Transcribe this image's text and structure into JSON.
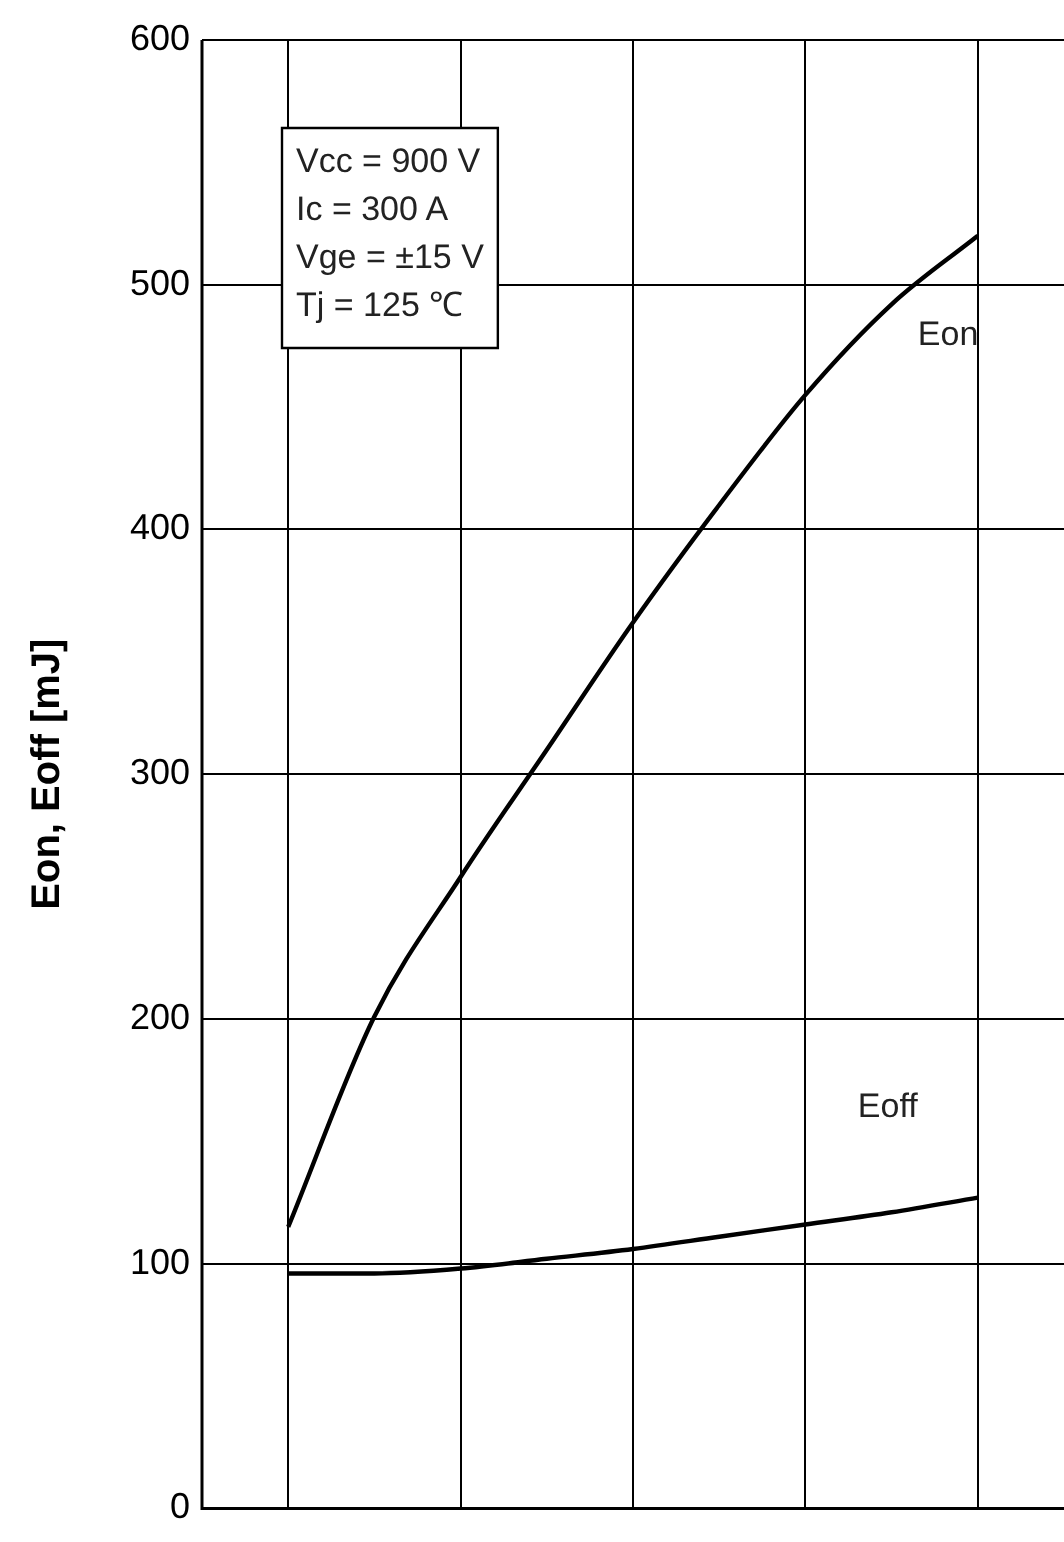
{
  "chart_data": {
    "type": "line",
    "ylabel": "Eon, Eoff [mJ]",
    "annotations": [
      "Vcc = 900 V",
      "Ic = 300 A",
      "Vge = ±15 V",
      "Tj = 125 ℃"
    ],
    "categories": [
      null,
      null,
      null,
      null,
      null,
      null,
      null,
      null,
      null,
      null,
      null
    ],
    "series": [
      {
        "name": "Eon",
        "color": "#000000",
        "values": [
          null,
          115,
          201,
          258,
          310,
          362,
          410,
          455,
          492,
          520,
          null
        ]
      },
      {
        "name": "Eoff",
        "color": "#000000",
        "values": [
          null,
          96,
          96,
          98,
          102,
          106,
          111,
          116,
          121,
          127,
          null
        ]
      }
    ],
    "ylim": [
      0,
      600
    ],
    "yticks": [
      0,
      100,
      200,
      300,
      400,
      500,
      600
    ],
    "grid": true,
    "tick_labels": "y",
    "legend": false,
    "marker": "none",
    "line_style": "solid"
  }
}
